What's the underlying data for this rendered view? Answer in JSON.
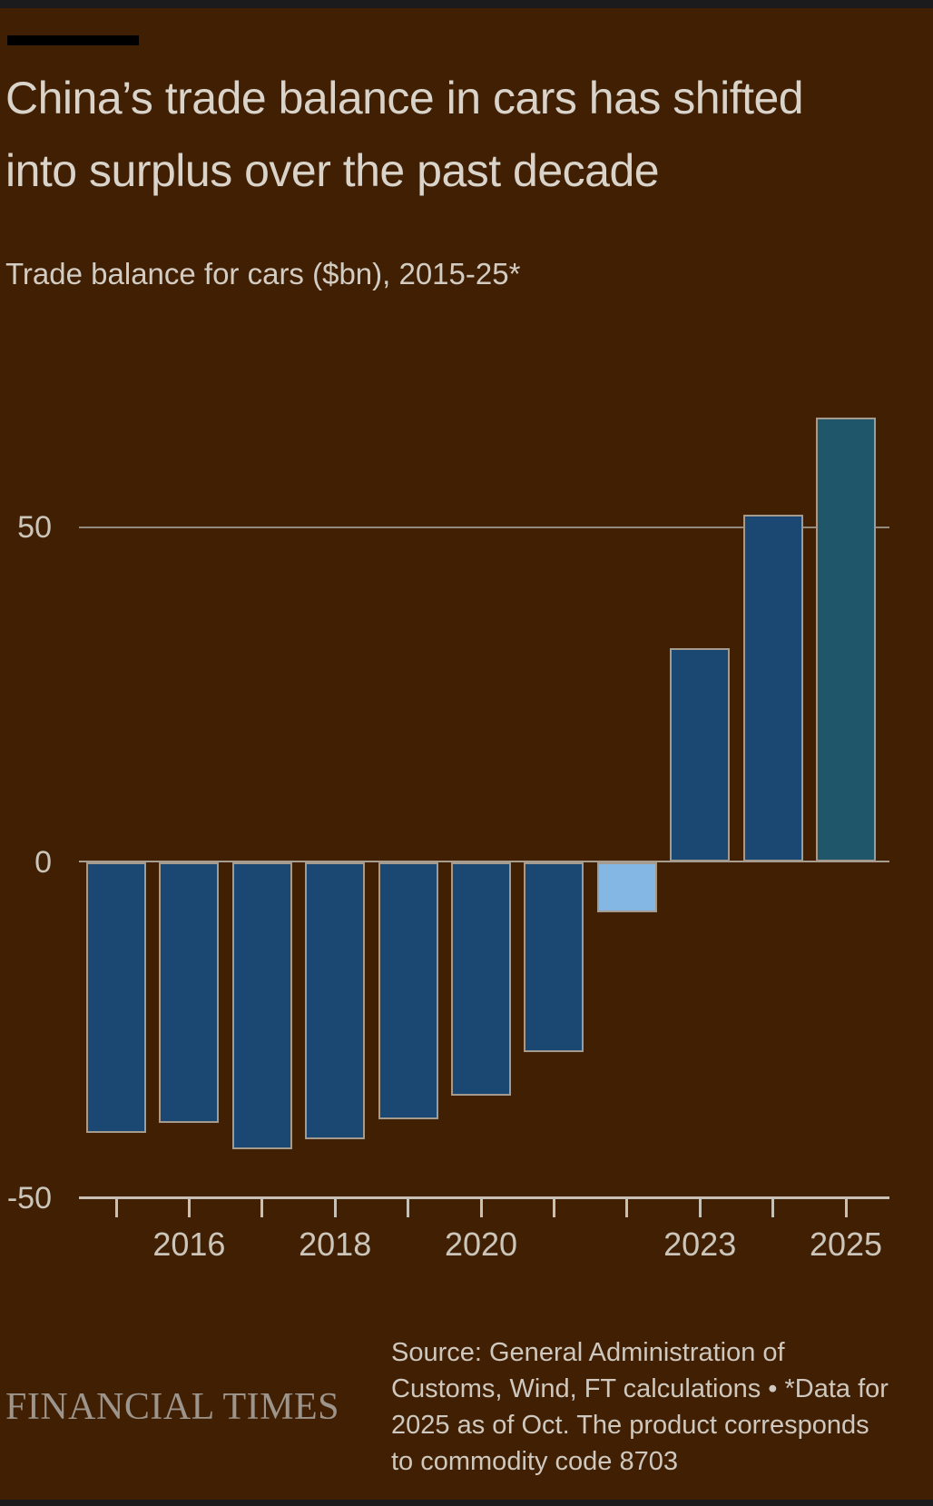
{
  "header": {
    "title_line1": "China’s trade balance in cars has shifted",
    "title_line2": "into surplus over the past decade",
    "subtitle": "Trade balance for cars ($bn), 2015-25*"
  },
  "chart_data": {
    "type": "bar",
    "title": "China’s trade balance in cars has shifted into surplus over the past decade",
    "subtitle": "Trade balance for cars ($bn), 2015-25*",
    "unit": "$bn",
    "categories": [
      2015,
      2016,
      2017,
      2018,
      2019,
      2020,
      2021,
      2022,
      2023,
      2024,
      2025
    ],
    "values": [
      -40.5,
      -39,
      -43,
      -41.5,
      -38.5,
      -35,
      -28.5,
      -7.5,
      32,
      52,
      66.5
    ],
    "bar_color_keys": [
      "navy",
      "navy",
      "navy",
      "navy",
      "navy",
      "navy",
      "navy",
      "lightblue",
      "navy",
      "navy",
      "teal"
    ],
    "ylim": [
      -50,
      70
    ],
    "yticks": [
      {
        "label": "50",
        "value": 50
      },
      {
        "label": "0",
        "value": 0
      },
      {
        "label": "-50",
        "value": -50
      }
    ],
    "xticks": [
      {
        "label": "2016",
        "index": 1
      },
      {
        "label": "2018",
        "index": 3
      },
      {
        "label": "2020",
        "index": 5
      },
      {
        "label": "2023",
        "index": 8
      },
      {
        "label": "2025",
        "index": 10
      }
    ],
    "grid": "horizontal gridline at 50 only, baseline at 0, axis line at -50",
    "legend": "none",
    "annotation": "2022 bar highlighted light blue, 2025 bar highlighted teal"
  },
  "footer": {
    "logo": "FINANCIAL TIMES",
    "source_lines": [
      "Source: General Administration of",
      "Customs, Wind, FT calculations • *Data for",
      "2025 as of Oct. The product corresponds",
      "to commodity code 8703"
    ]
  },
  "colors": {
    "background": "#401F03",
    "frame_strip": "#1B1B1D",
    "title_rule": "#000000",
    "title_text": "#D9D3CA",
    "subtitle_text": "#D3CCC2",
    "axis_label_text": "#CCC5BA",
    "gridline": "#93897D",
    "zero_line": "#A79E91",
    "axis_line": "#C7C0B4",
    "bar_border": "#A49B8E",
    "bars": {
      "navy": "#1B4773",
      "lightblue": "#85B7E4",
      "teal": "#1F566A"
    },
    "logo_text": "#9D958C",
    "source_text": "#CFC8BE"
  }
}
